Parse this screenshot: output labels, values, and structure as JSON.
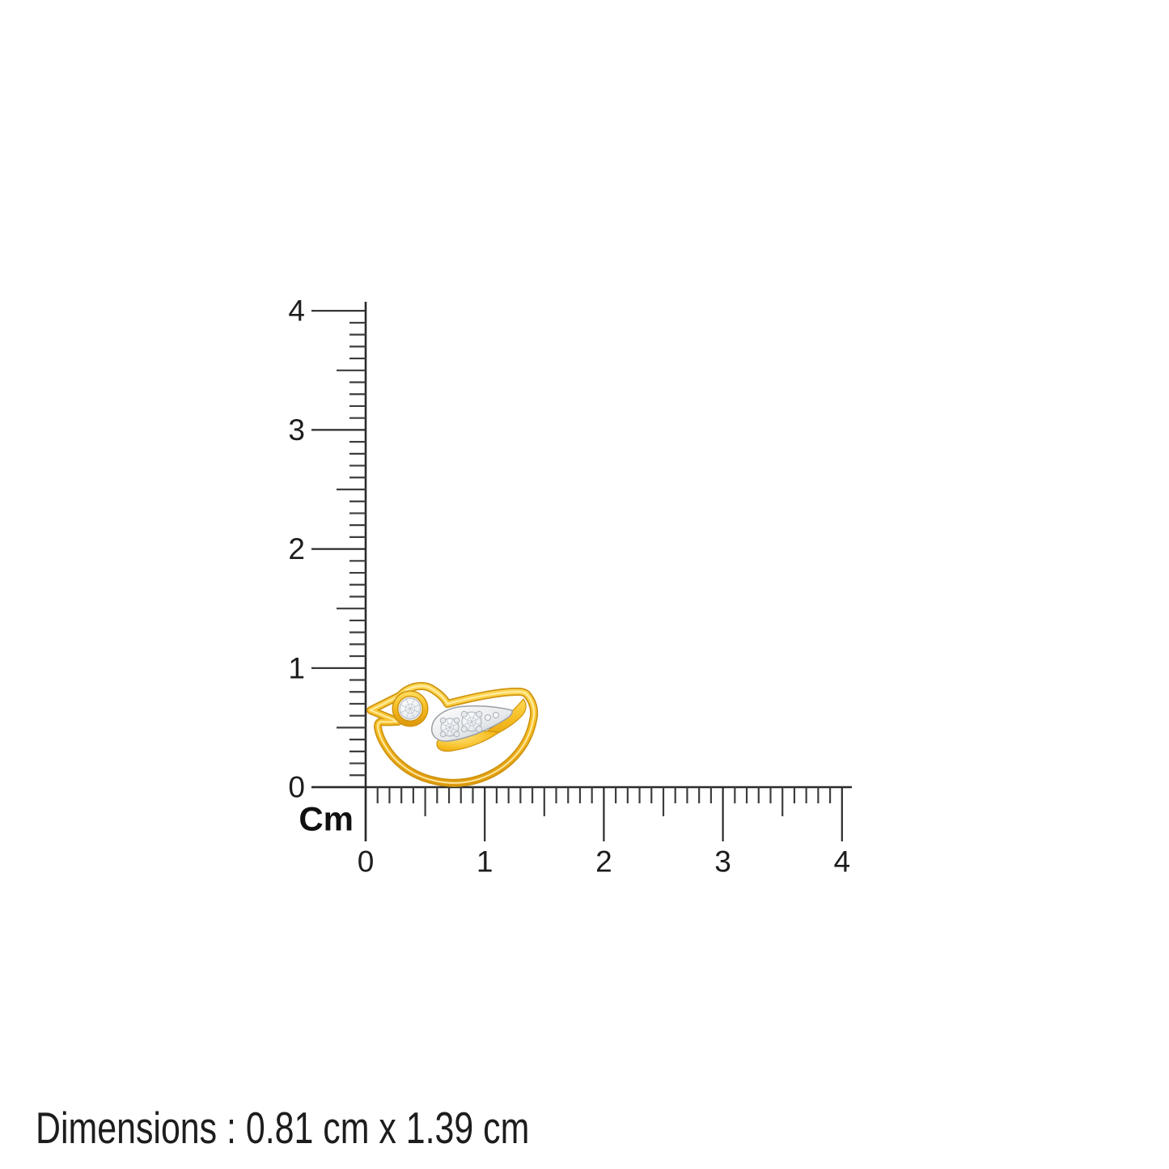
{
  "ruler": {
    "unit_label": "Cm",
    "vertical_axis": {
      "tick_labels": [
        "0",
        "1",
        "2",
        "3",
        "4"
      ],
      "range_cm": [
        0,
        4
      ]
    },
    "horizontal_axis": {
      "tick_labels": [
        "0",
        "1",
        "2",
        "3",
        "4"
      ],
      "range_cm": [
        0,
        4
      ]
    },
    "minor_divisions_per_cm": 10,
    "line_color": "#2a2a2a",
    "tick_color": "#3d3d3d",
    "label_color": "#1d1d1f"
  },
  "caption": {
    "text": "Dimensions : 0.81 cm x 1.39 cm"
  },
  "product": {
    "name": "gold-bird-pendant-with-diamonds",
    "wing_diamond_count": 2,
    "eye_diamond_count": 1,
    "colors": {
      "gold": "#f6bd22",
      "gold_highlight": "#ffe27a",
      "gold_shadow": "#cf9410",
      "white_gold": "#d7dadd",
      "diamond": "#eef1f5",
      "background": "#ffffff"
    }
  }
}
